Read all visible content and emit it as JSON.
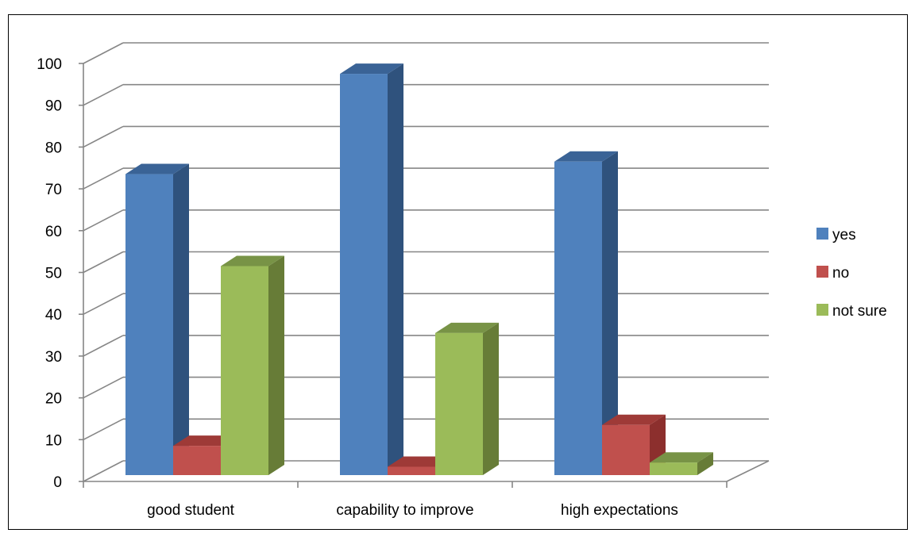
{
  "chart_data": {
    "type": "bar",
    "categories": [
      "good student",
      "capability to improve",
      "high expectations"
    ],
    "series": [
      {
        "name": "yes",
        "values": [
          72,
          96,
          75
        ],
        "color": "#4F81BD",
        "side": "#2F527D",
        "top": "#3A6396"
      },
      {
        "name": "no",
        "values": [
          7,
          2,
          12
        ],
        "color": "#C0504D",
        "side": "#8C2F2D",
        "top": "#9E3A37"
      },
      {
        "name": "not sure",
        "values": [
          50,
          34,
          3
        ],
        "color": "#9BBB59",
        "side": "#677C37",
        "top": "#789346"
      }
    ],
    "yticks": [
      0,
      10,
      20,
      30,
      40,
      50,
      60,
      70,
      80,
      90,
      100
    ],
    "ylim": [
      0,
      100
    ],
    "grid": true,
    "legend_position": "right"
  }
}
